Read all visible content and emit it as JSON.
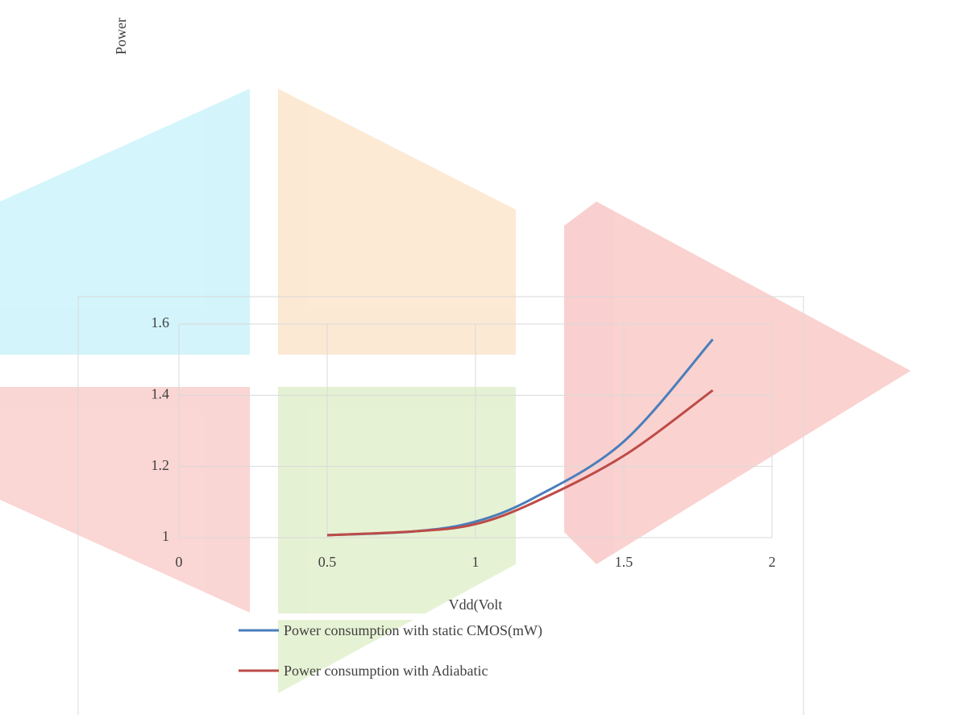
{
  "chart_data": {
    "type": "line",
    "y_label": "Power",
    "x_label": "Vdd(Volt",
    "x": [
      0.5,
      0.8,
      1.0,
      1.2,
      1.5,
      1.8
    ],
    "series": [
      {
        "name": "Power consumption with static CMOS(mW)",
        "color": "#4a7ebb",
        "values": [
          1.007,
          1.018,
          1.045,
          1.113,
          1.27,
          1.557
        ]
      },
      {
        "name": "Power consumption with Adiabatic",
        "color": "#be4b48",
        "values": [
          1.007,
          1.018,
          1.038,
          1.1,
          1.23,
          1.414
        ]
      }
    ],
    "xlim": [
      0,
      2
    ],
    "xticks": [
      0,
      0.5,
      1,
      1.5,
      2
    ],
    "ylim": [
      1,
      1.6
    ],
    "yticks": [
      1,
      1.2,
      1.4,
      1.6
    ],
    "grid": true
  }
}
